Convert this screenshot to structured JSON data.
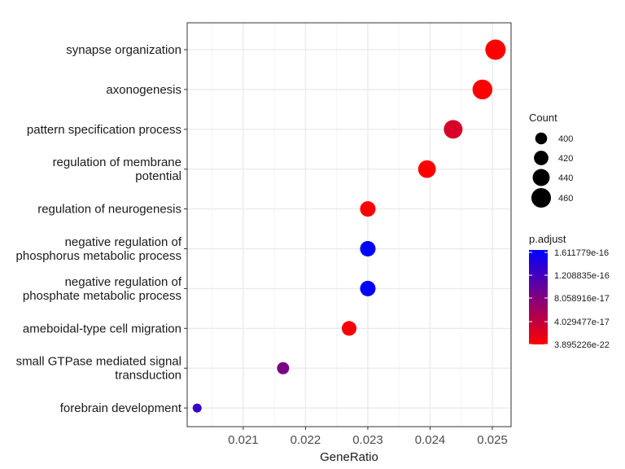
{
  "chart_data": {
    "type": "scatter",
    "xlabel": "GeneRatio",
    "ylabel": "",
    "xlim": [
      0.0201,
      0.0253
    ],
    "xticks": [
      0.021,
      0.022,
      0.023,
      0.024,
      0.025
    ],
    "xtick_labels": [
      "0.021",
      "0.022",
      "0.023",
      "0.024",
      "0.025"
    ],
    "grid": true,
    "categories": [
      "synapse organization",
      "axonogenesis",
      "pattern specification process",
      "regulation of membrane potential",
      "regulation of neurogenesis",
      "negative regulation of phosphorus metabolic process",
      "negative regulation of phosphate metabolic process",
      "ameboidal-type cell migration",
      "small GTPase mediated signal transduction",
      "forebrain development"
    ],
    "category_lines": [
      [
        "synapse organization"
      ],
      [
        "axonogenesis"
      ],
      [
        "pattern specification process"
      ],
      [
        "regulation of membrane",
        "potential"
      ],
      [
        "regulation of neurogenesis"
      ],
      [
        "negative regulation of",
        "phosphorus metabolic process"
      ],
      [
        "negative regulation of",
        "phosphate metabolic process"
      ],
      [
        "ameboidal-type cell migration"
      ],
      [
        "small GTPase mediated signal",
        "transduction"
      ],
      [
        "forebrain development"
      ]
    ],
    "points": [
      {
        "term": "synapse organization",
        "gene_ratio": 0.02505,
        "count": 466,
        "p_adjust": 1e-21
      },
      {
        "term": "axonogenesis",
        "gene_ratio": 0.02484,
        "count": 462,
        "p_adjust": 2e-18
      },
      {
        "term": "pattern specification process",
        "gene_ratio": 0.02437,
        "count": 453,
        "p_adjust": 2.5e-17
      },
      {
        "term": "regulation of membrane potential",
        "gene_ratio": 0.02395,
        "count": 445,
        "p_adjust": 8e-19
      },
      {
        "term": "regulation of neurogenesis",
        "gene_ratio": 0.023,
        "count": 428,
        "p_adjust": 3e-19
      },
      {
        "term": "negative regulation of phosphorus metabolic process",
        "gene_ratio": 0.023,
        "count": 428,
        "p_adjust": 1.61e-16
      },
      {
        "term": "negative regulation of phosphate metabolic process",
        "gene_ratio": 0.023,
        "count": 428,
        "p_adjust": 1.6e-16
      },
      {
        "term": "ameboidal-type cell migration",
        "gene_ratio": 0.0227,
        "count": 422,
        "p_adjust": 4e-18
      },
      {
        "term": "small GTPase mediated signal transduction",
        "gene_ratio": 0.02164,
        "count": 402,
        "p_adjust": 8.5e-17
      },
      {
        "term": "forebrain development",
        "gene_ratio": 0.02026,
        "count": 377,
        "p_adjust": 1.25e-16
      }
    ],
    "size_legend": {
      "title": "Count",
      "values": [
        400,
        420,
        440,
        460
      ],
      "labels": [
        "400",
        "420",
        "440",
        "460"
      ],
      "placement": "right"
    },
    "color_legend": {
      "title": "p.adjust",
      "labels": [
        "1.611779e-16",
        "1.208835e-16",
        "8.058916e-17",
        "4.029477e-17",
        "3.895226e-22"
      ],
      "values": [
        1.611779e-16,
        1.208835e-16,
        8.058916e-17,
        4.029477e-17,
        3.895226e-22
      ],
      "low_color": "#ff0000",
      "high_color": "#0000ff",
      "placement": "right"
    }
  }
}
